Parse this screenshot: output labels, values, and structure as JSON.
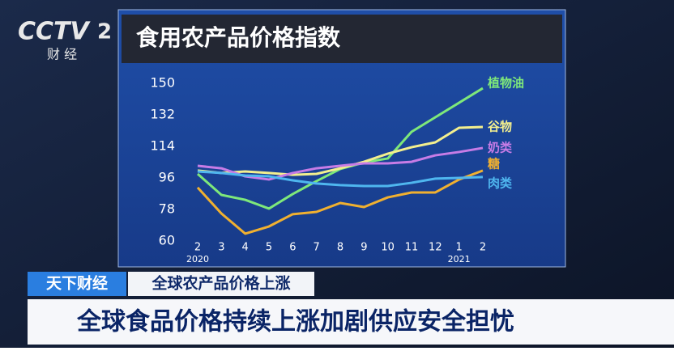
{
  "channel": {
    "logo": "CCTV",
    "number": "2",
    "name": "财 经"
  },
  "banner": {
    "program": "天下财经",
    "topic": "全球农产品价格上涨",
    "headline": "全球食品价格持续上涨加剧供应安全担忧"
  },
  "chart_data": {
    "type": "line",
    "title": "食用农产品价格指数",
    "categories": [
      "2",
      "3",
      "4",
      "5",
      "6",
      "7",
      "8",
      "9",
      "10",
      "11",
      "12",
      "1",
      "2"
    ],
    "years": [
      "2020",
      null,
      null,
      null,
      null,
      null,
      null,
      null,
      null,
      null,
      null,
      "2021",
      null
    ],
    "ylim": [
      60,
      150
    ],
    "yticks": [
      60,
      78,
      96,
      114,
      132,
      150
    ],
    "series": [
      {
        "name": "植物油",
        "color": "#7ee87a",
        "values": [
          98.3,
          86.3,
          83.5,
          78.5,
          86.8,
          94.2,
          101.1,
          104.8,
          107.1,
          122.3,
          130.6,
          138.9,
          147.2
        ]
      },
      {
        "name": "谷物",
        "color": "#f3ef8e",
        "values": [
          100.2,
          98.8,
          99.7,
          98.8,
          97.8,
          98.3,
          101.5,
          105.2,
          109.8,
          113.5,
          116.3,
          124.6,
          125.1
        ]
      },
      {
        "name": "奶类",
        "color": "#c77ce6",
        "values": [
          102.9,
          101.5,
          96.9,
          95.1,
          98.8,
          101.5,
          102.9,
          104.3,
          104.3,
          105.2,
          108.9,
          110.8,
          113.1
        ]
      },
      {
        "name": "糖",
        "color": "#f0b030",
        "values": [
          90.5,
          75.7,
          64.2,
          68.3,
          75.3,
          76.6,
          81.7,
          79.4,
          84.9,
          87.7,
          87.7,
          95.1,
          100.2
        ]
      },
      {
        "name": "肉类",
        "color": "#4fb6ef",
        "values": [
          99.7,
          98.8,
          97.4,
          96.9,
          94.6,
          92.8,
          91.9,
          91.4,
          91.4,
          93.2,
          95.6,
          96.0,
          96.5
        ]
      }
    ]
  }
}
